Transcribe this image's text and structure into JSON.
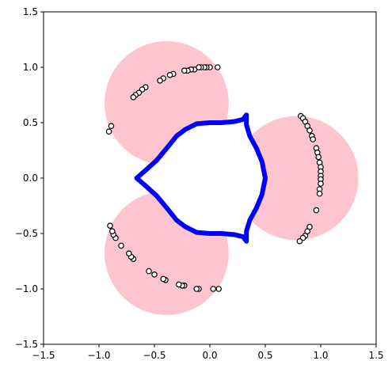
{
  "chart_data": {
    "type": "scatter",
    "title": "",
    "xlabel": "",
    "ylabel": "",
    "xlim": [
      -1.5,
      1.5
    ],
    "ylim": [
      -1.5,
      1.5
    ],
    "xticks": [
      -1.5,
      -1.0,
      -0.5,
      0.0,
      0.5,
      1.0,
      1.5
    ],
    "yticks": [
      -1.5,
      -1.0,
      -0.5,
      0.0,
      0.5,
      1.0,
      1.5
    ],
    "xtick_labels": [
      "−1.5",
      "−1.0",
      "−0.5",
      "0.0",
      "0.5",
      "1.0",
      "1.5"
    ],
    "ytick_labels": [
      "−1.5",
      "−1.0",
      "−0.5",
      "0.0",
      "0.5",
      "1.0",
      "1.5"
    ],
    "grid": false,
    "legend": "none",
    "aspect": "equal",
    "colors": {
      "shaded_region": "#ffc0cb",
      "inner_boundary": "#0000ff",
      "marker_fill": "#ffffff",
      "marker_edge": "#000000"
    },
    "shaded_region": {
      "description_of_shape": "three overlapping lobes centered near angles 120, 0 and 240 degrees",
      "lobe_centers_deg": [
        120,
        0,
        240
      ],
      "lobe_center_radius": 0.78,
      "lobe_radius": 0.56
    },
    "inner_boundary": {
      "points": [
        [
          0.33,
          0.57
        ],
        [
          0.3,
          0.53
        ],
        [
          0.22,
          0.51
        ],
        [
          0.1,
          0.5
        ],
        [
          0.0,
          0.5
        ],
        [
          -0.12,
          0.49
        ],
        [
          -0.22,
          0.44
        ],
        [
          -0.3,
          0.38
        ],
        [
          -0.38,
          0.28
        ],
        [
          -0.48,
          0.16
        ],
        [
          -0.58,
          0.07
        ],
        [
          -0.66,
          0.0
        ],
        [
          -0.58,
          -0.07
        ],
        [
          -0.48,
          -0.16
        ],
        [
          -0.38,
          -0.28
        ],
        [
          -0.3,
          -0.38
        ],
        [
          -0.22,
          -0.44
        ],
        [
          -0.12,
          -0.49
        ],
        [
          0.0,
          -0.5
        ],
        [
          0.1,
          -0.5
        ],
        [
          0.22,
          -0.51
        ],
        [
          0.3,
          -0.53
        ],
        [
          0.33,
          -0.57
        ],
        [
          0.33,
          -0.48
        ],
        [
          0.36,
          -0.38
        ],
        [
          0.42,
          -0.27
        ],
        [
          0.47,
          -0.15
        ],
        [
          0.5,
          0.0
        ],
        [
          0.47,
          0.15
        ],
        [
          0.42,
          0.27
        ],
        [
          0.36,
          0.38
        ],
        [
          0.33,
          0.48
        ],
        [
          0.33,
          0.57
        ]
      ]
    },
    "points": [
      [
        0.07,
        1.0
      ],
      [
        0.0,
        1.0
      ],
      [
        -0.03,
        1.0
      ],
      [
        -0.05,
        1.0
      ],
      [
        -0.08,
        1.0
      ],
      [
        -0.1,
        1.0
      ],
      [
        -0.14,
        0.98
      ],
      [
        -0.17,
        0.98
      ],
      [
        -0.2,
        0.97
      ],
      [
        -0.23,
        0.97
      ],
      [
        -0.33,
        0.94
      ],
      [
        -0.36,
        0.93
      ],
      [
        -0.42,
        0.9
      ],
      [
        -0.45,
        0.88
      ],
      [
        -0.58,
        0.82
      ],
      [
        -0.61,
        0.8
      ],
      [
        -0.64,
        0.77
      ],
      [
        -0.67,
        0.75
      ],
      [
        -0.69,
        0.73
      ],
      [
        -0.89,
        0.47
      ],
      [
        -0.91,
        0.42
      ],
      [
        0.82,
        0.56
      ],
      [
        0.84,
        0.54
      ],
      [
        0.86,
        0.51
      ],
      [
        0.88,
        0.47
      ],
      [
        0.9,
        0.43
      ],
      [
        0.92,
        0.38
      ],
      [
        0.93,
        0.35
      ],
      [
        0.96,
        0.27
      ],
      [
        0.97,
        0.23
      ],
      [
        0.98,
        0.19
      ],
      [
        0.99,
        0.14
      ],
      [
        1.0,
        0.1
      ],
      [
        1.0,
        0.06
      ],
      [
        1.0,
        0.02
      ],
      [
        1.0,
        -0.01
      ],
      [
        1.0,
        -0.05
      ],
      [
        0.99,
        -0.1
      ],
      [
        0.99,
        -0.14
      ],
      [
        0.96,
        -0.29
      ],
      [
        0.9,
        -0.44
      ],
      [
        0.88,
        -0.48
      ],
      [
        0.86,
        -0.52
      ],
      [
        0.84,
        -0.54
      ],
      [
        0.81,
        -0.57
      ],
      [
        0.08,
        -1.0
      ],
      [
        0.03,
        -1.0
      ],
      [
        -0.1,
        -1.0
      ],
      [
        -0.12,
        -1.0
      ],
      [
        -0.23,
        -0.97
      ],
      [
        -0.25,
        -0.97
      ],
      [
        -0.28,
        -0.96
      ],
      [
        -0.4,
        -0.92
      ],
      [
        -0.42,
        -0.91
      ],
      [
        -0.5,
        -0.87
      ],
      [
        -0.55,
        -0.84
      ],
      [
        -0.69,
        -0.73
      ],
      [
        -0.71,
        -0.71
      ],
      [
        -0.73,
        -0.68
      ],
      [
        -0.8,
        -0.61
      ],
      [
        -0.85,
        -0.54
      ],
      [
        -0.87,
        -0.51
      ],
      [
        -0.88,
        -0.48
      ],
      [
        -0.9,
        -0.43
      ]
    ]
  }
}
